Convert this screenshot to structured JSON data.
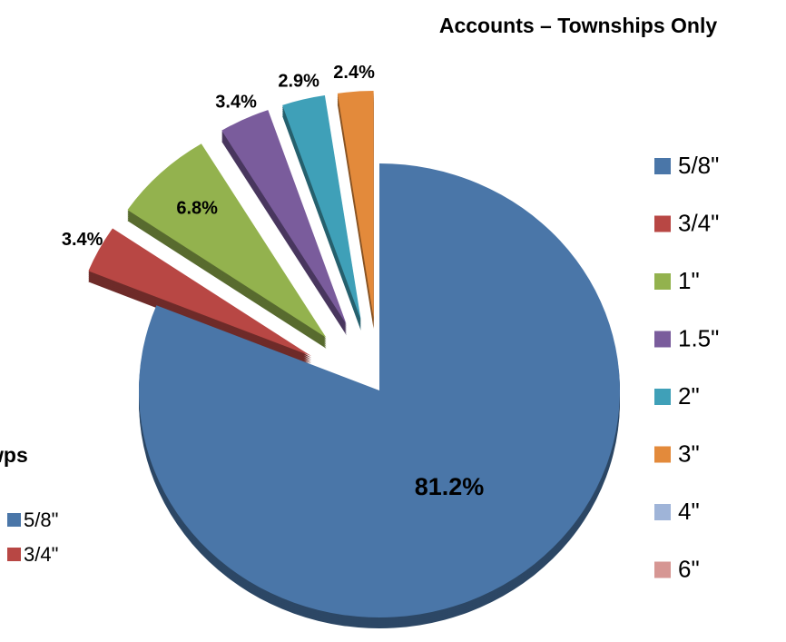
{
  "chart_data": {
    "type": "pie",
    "title": "Accounts – Townships Only",
    "categories": [
      "5/8\"",
      "3/4\"",
      "1\"",
      "1.5\"",
      "2\"",
      "3\"",
      "4\"",
      "6\""
    ],
    "values": [
      81.2,
      3.4,
      6.8,
      3.4,
      2.9,
      2.4,
      0,
      0
    ],
    "value_labels": [
      "81.2%",
      "3.4%",
      "6.8%",
      "3.4%",
      "2.9%",
      "2.4%",
      null,
      null
    ],
    "colors": [
      "#4a76a8",
      "#b84744",
      "#93b24e",
      "#7a5c9c",
      "#3fa0b8",
      "#e38a3b",
      "#9fb4d8",
      "#d69693"
    ],
    "legend": "right"
  },
  "partial_chart": {
    "title": "wps",
    "legend": [
      "5/8\"",
      "3/4\""
    ],
    "colors": [
      "#4a76a8",
      "#b84744"
    ]
  }
}
